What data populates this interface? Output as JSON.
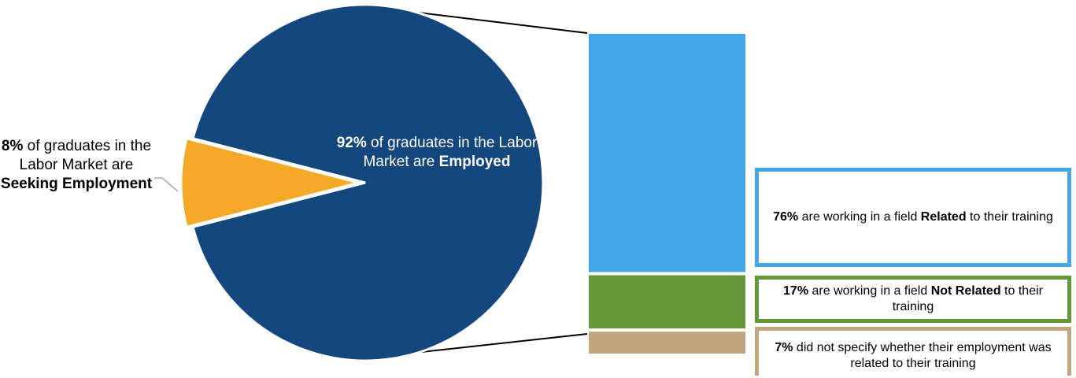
{
  "colors": {
    "employed": "#13477e",
    "seeking": "#f5a928",
    "related": "#42a5e6",
    "not_related": "#679838",
    "unspecified": "#bfa67f",
    "connector": "#000000",
    "leader": "#aaaaaa"
  },
  "labels": {
    "seeking": {
      "pct": "8%",
      "text1": " of graduates in the Labor Market are ",
      "strong": "Seeking Employment"
    },
    "employed": {
      "pct": "92%",
      "text1": " of graduates in the Labor Market are ",
      "strong": "Employed"
    },
    "related": {
      "pct": "76%",
      "text1": " are working in a field ",
      "strong": "Related",
      "text2": " to their training"
    },
    "not_related": {
      "pct": "17%",
      "text1": " are working in a field ",
      "strong": "Not Related",
      "text2": " to their training"
    },
    "unspecified": {
      "pct": "7%",
      "text1": " did not specify whether their employment was related to their training"
    }
  },
  "chart_data": [
    {
      "type": "pie",
      "categories": [
        "Employed",
        "Seeking Employment"
      ],
      "values": [
        92,
        8
      ],
      "units": "%"
    },
    {
      "type": "bar",
      "stacked": true,
      "categories": [
        "Related",
        "Not Related",
        "Did not specify"
      ],
      "values": [
        76,
        17,
        7
      ],
      "units": "%"
    }
  ]
}
